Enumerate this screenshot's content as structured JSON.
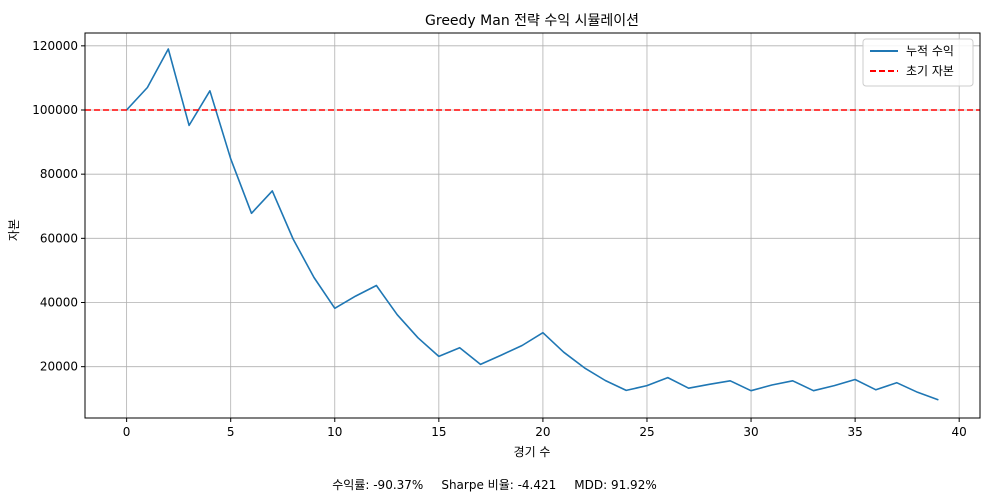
{
  "chart_data": {
    "type": "line",
    "title": "Greedy Man 전략 수익 시뮬레이션",
    "xlabel": "경기 수",
    "ylabel": "자본",
    "xlim": [
      -2,
      41
    ],
    "ylim": [
      4000,
      124000
    ],
    "x_ticks": [
      0,
      5,
      10,
      15,
      20,
      25,
      30,
      35,
      40
    ],
    "y_ticks": [
      20000,
      40000,
      60000,
      80000,
      100000,
      120000
    ],
    "grid": true,
    "legend_position": "top-right",
    "series": [
      {
        "name": "누적 수익",
        "color": "#1f77b4",
        "style": "solid",
        "x": [
          0,
          1,
          2,
          3,
          4,
          5,
          6,
          7,
          8,
          9,
          10,
          11,
          12,
          13,
          14,
          15,
          16,
          17,
          18,
          19,
          20,
          21,
          22,
          23,
          24,
          25,
          26,
          27,
          28,
          29,
          30,
          31,
          32,
          33,
          34,
          35,
          36,
          37,
          38,
          39
        ],
        "values": [
          100000,
          107000,
          119000,
          95200,
          106000,
          84800,
          67800,
          74800,
          59800,
          47800,
          38200,
          42000,
          45300,
          36200,
          29000,
          23200,
          25900,
          20700,
          23600,
          26600,
          30600,
          24500,
          19600,
          15700,
          12600,
          14100,
          16600,
          13300,
          14500,
          15600,
          12500,
          14300,
          15600,
          12500,
          14100,
          16000,
          12800,
          15000,
          12000,
          9630
        ]
      },
      {
        "name": "초기 자본",
        "color": "#ff0000",
        "style": "dashed",
        "constant": 100000
      }
    ]
  },
  "stats": {
    "return_text": "수익률: -90.37%",
    "sharpe_text": "Sharpe 비율: -4.421",
    "mdd_text": "MDD: 91.92%"
  }
}
